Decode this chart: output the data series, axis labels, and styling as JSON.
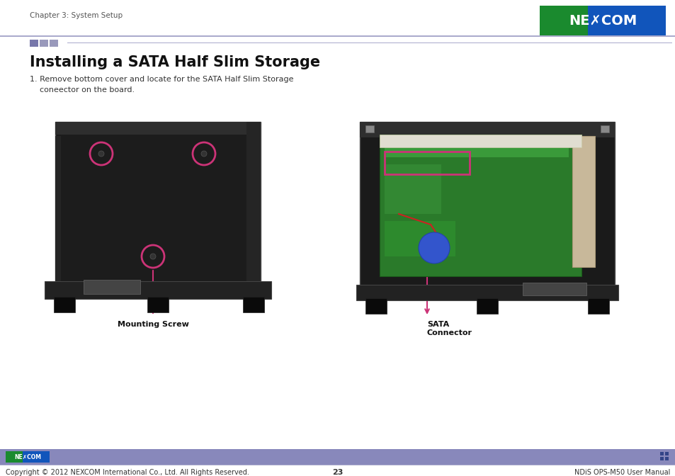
{
  "page_bg": "#ffffff",
  "header_text": "Chapter 3: System Setup",
  "header_font_size": 7.5,
  "header_text_color": "#555555",
  "title": "Installing a SATA Half Slim Storage",
  "title_font_size": 15,
  "title_font_weight": "bold",
  "body_text_line1": "1. Remove bottom cover and locate for the SATA Half Slim Storage",
  "body_text_line2": "    coneector on the board.",
  "body_font_size": 8,
  "body_text_color": "#333333",
  "squares_color1": "#7777aa",
  "squares_color2": "#9999bb",
  "squares_color3": "#9999bb",
  "divider_color": "#aaaacc",
  "footer_bar_color": "#8888bb",
  "footer_text_left": "Copyright © 2012 NEXCOM International Co., Ltd. All Rights Reserved.",
  "footer_text_center": "23",
  "footer_text_right": "NDiS OPS-M50 User Manual",
  "footer_font_size": 7,
  "footer_text_color": "#333333",
  "nexcom_green": "#1a8a2e",
  "nexcom_blue": "#1155bb",
  "annotation_color": "#cc3377",
  "label_mounting_screw": "Mounting Screw",
  "label_sata_line1": "SATA",
  "label_sata_line2": "Connector",
  "label_font_size": 8,
  "label_font_weight": "bold",
  "device_dark": "#1a1a1a",
  "device_mid": "#2a2a2a",
  "device_light": "#3a3a3a",
  "pcb_green": "#2a7a2a",
  "pcb_light_green": "#3a9a3a"
}
